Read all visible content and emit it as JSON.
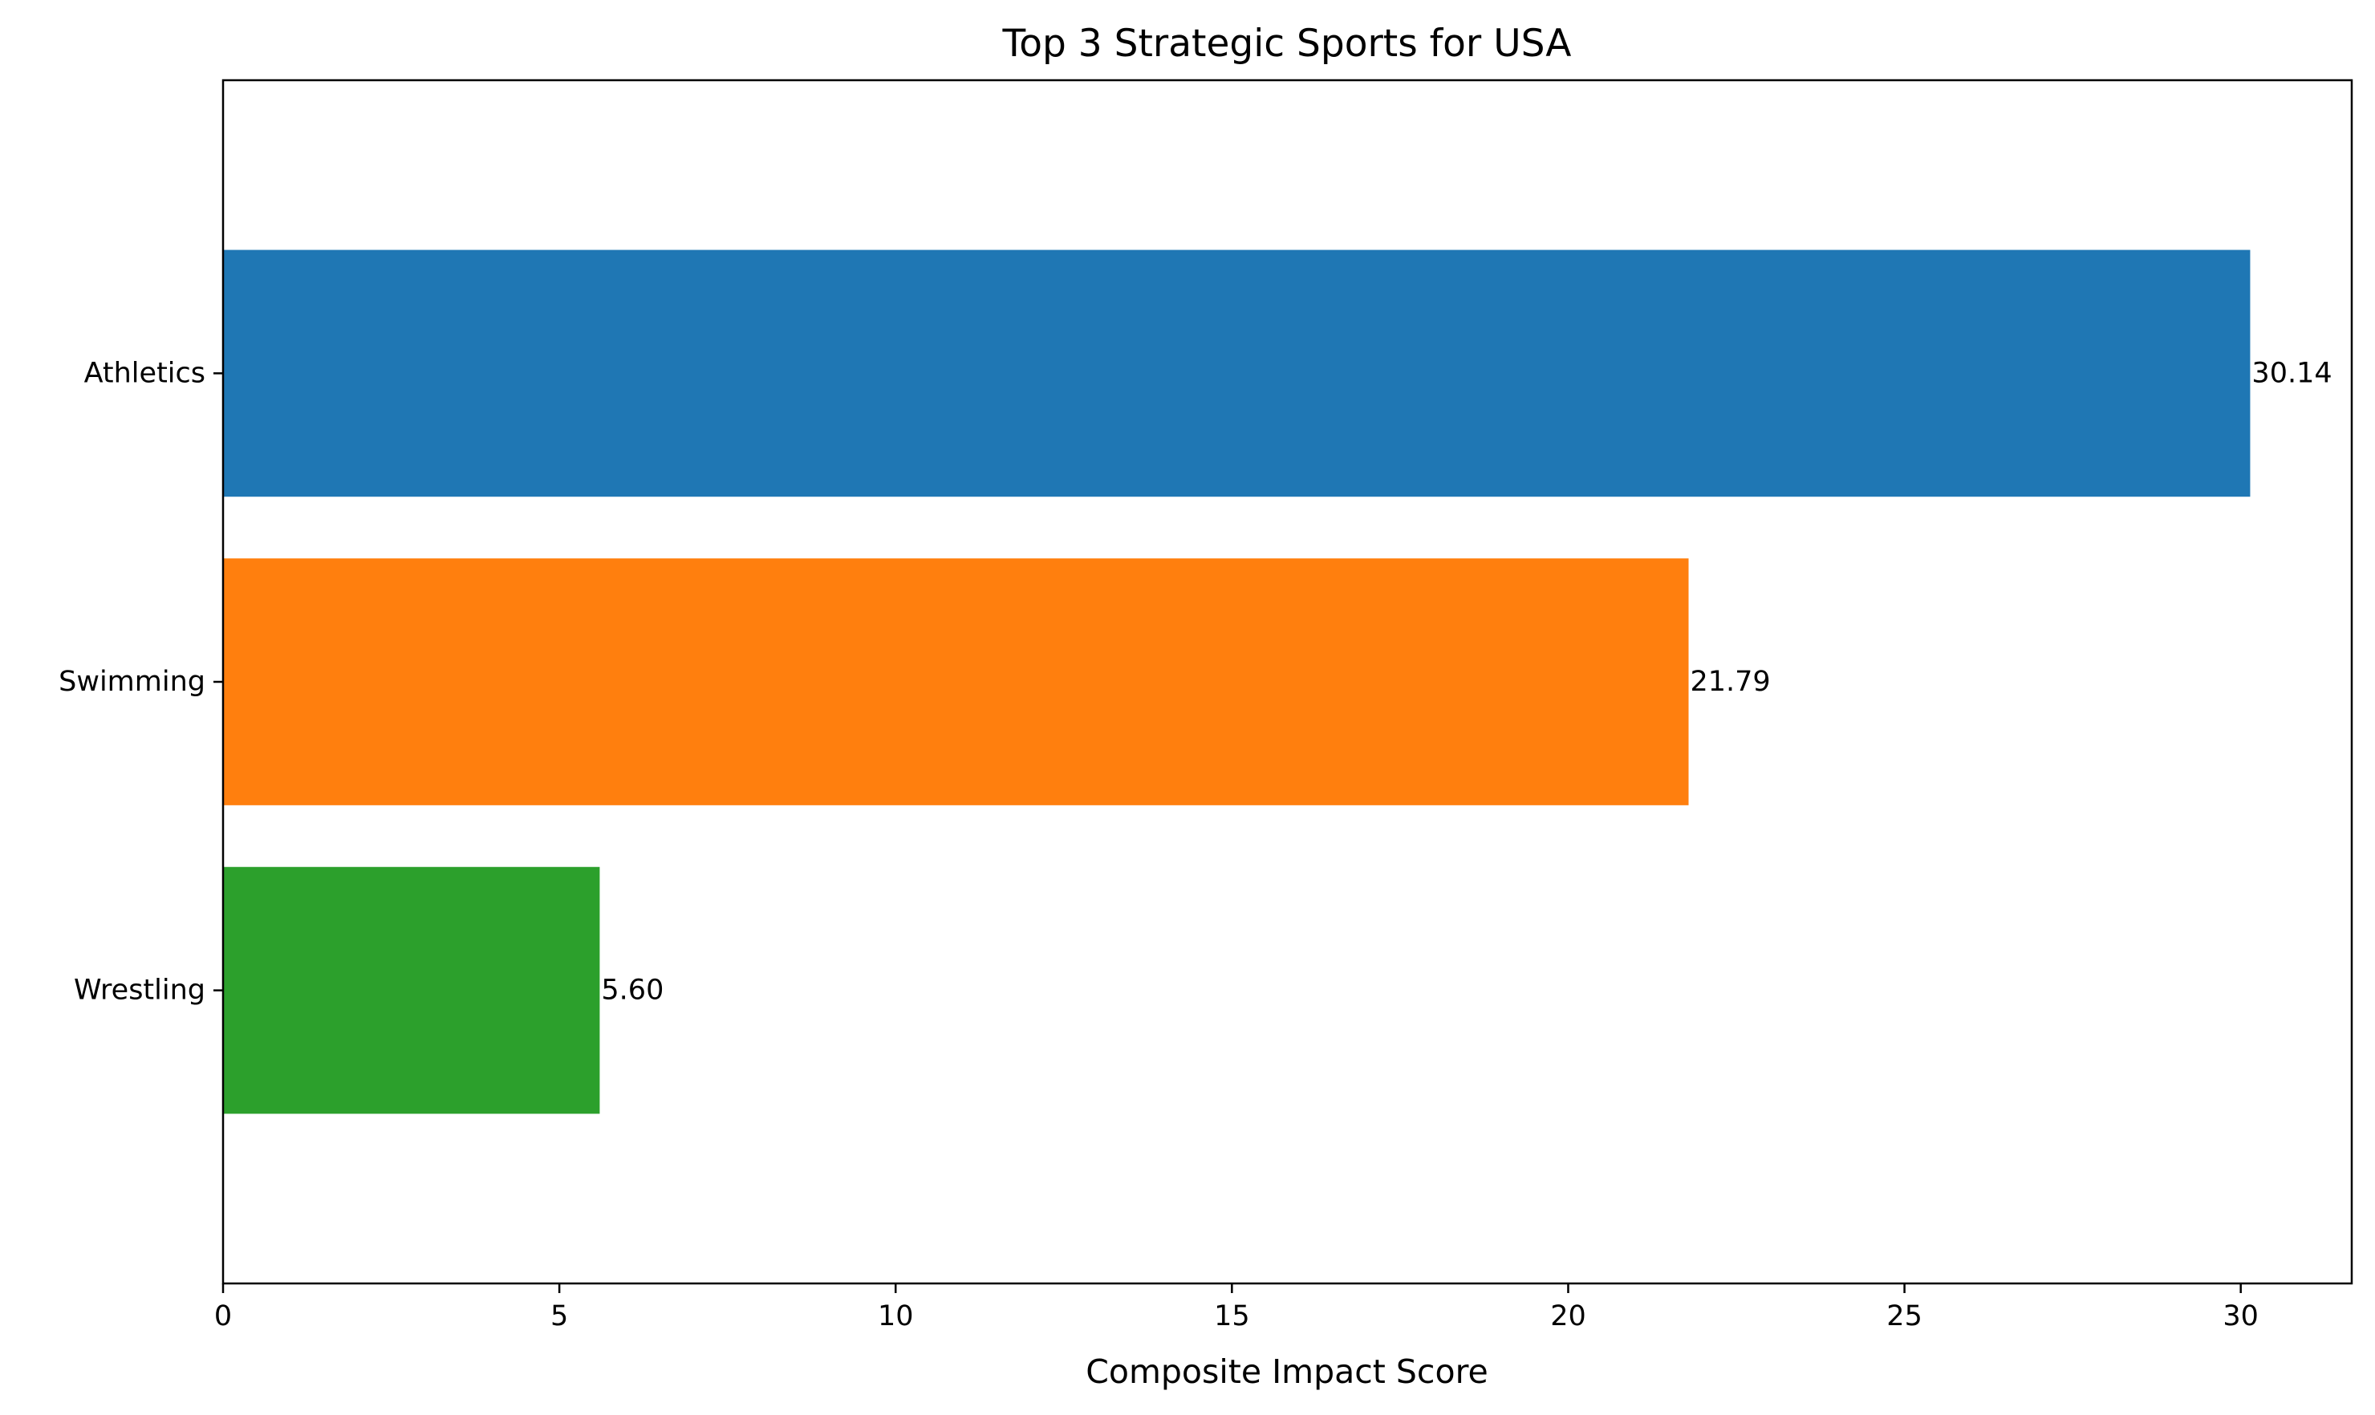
{
  "chart_data": {
    "type": "bar",
    "orientation": "horizontal",
    "title": "Top 3 Strategic Sports for USA",
    "xlabel": "Composite Impact Score",
    "ylabel": "",
    "categories": [
      "Athletics",
      "Swimming",
      "Wrestling"
    ],
    "values": [
      30.14,
      21.79,
      5.6
    ],
    "data_labels": [
      "30.14",
      "21.79",
      "5.60"
    ],
    "colors": [
      "#1f77b4",
      "#ff7f0e",
      "#2ca02c"
    ],
    "xlim": [
      0,
      31.65
    ],
    "xticks": [
      0,
      5,
      10,
      15,
      20,
      25,
      30
    ],
    "xtick_labels": [
      "0",
      "5",
      "10",
      "15",
      "20",
      "25",
      "30"
    ],
    "grid": false,
    "legend": "none"
  }
}
